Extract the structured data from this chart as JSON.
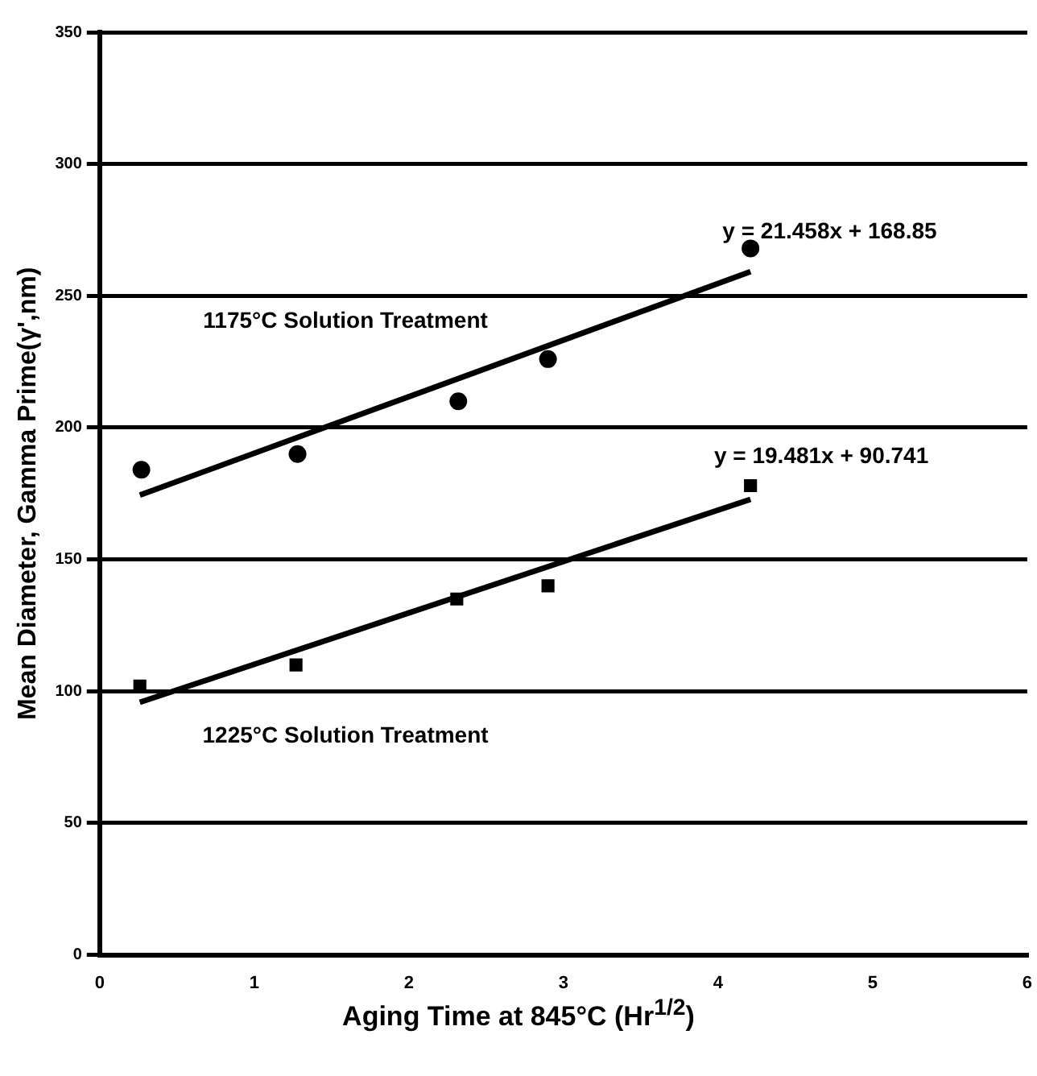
{
  "chart_data": {
    "type": "scatter",
    "xlabel": "Aging Time at 845°C (Hr$^{1/2}$)",
    "ylabel": "Mean Diameter, Gamma Prime(γ',nm)",
    "xlim": [
      0,
      6
    ],
    "xticks": [
      0,
      1,
      2,
      3,
      4,
      5,
      6
    ],
    "ylim": [
      0,
      350
    ],
    "yticks": [
      0,
      50,
      100,
      150,
      200,
      250,
      300,
      350
    ],
    "grid": "y",
    "legend": false,
    "series": [
      {
        "type": "scatter",
        "color": "#000000",
        "marker": "circle",
        "x": [
          0.27,
          1.28,
          2.32,
          2.9,
          4.21
        ],
        "values": [
          184,
          190,
          210,
          226,
          268
        ]
      },
      {
        "type": "scatter",
        "color": "#000000",
        "marker": "square",
        "x": [
          0.26,
          1.27,
          2.31,
          2.9,
          4.21
        ],
        "values": [
          102,
          110,
          135,
          140,
          178
        ]
      },
      {
        "type": "line",
        "color": "#000000",
        "marker": "none",
        "x": [
          0.26,
          4.21
        ],
        "values": [
          174.4,
          259.2
        ]
      },
      {
        "type": "line",
        "color": "#000000",
        "marker": "none",
        "x": [
          0.26,
          4.21
        ],
        "values": [
          95.8,
          172.8
        ]
      }
    ],
    "annotations": [
      "y = 21.458x + 168.85",
      "1175°C Solution Treatment",
      "y = 19.481x + 90.741",
      "1225°C Solution Treatment"
    ]
  }
}
